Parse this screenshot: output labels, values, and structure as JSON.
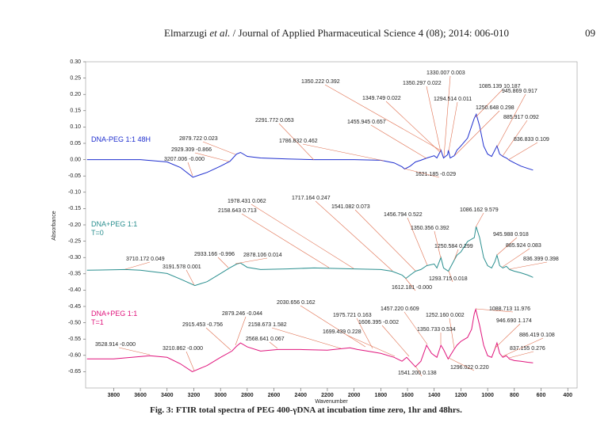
{
  "header": {
    "authors": "Elmarzugi",
    "etal": "et al.",
    "journal": "/ Journal of Applied Pharmaceutical Science 4 (08); 2014: 006-010",
    "page": "09"
  },
  "caption": "Fig. 3: FTIR total spectra of PEG 400-γDNA at incubation time zero, 1hr and 48hrs.",
  "chart_data": {
    "type": "line",
    "xlabel": "Wavenumber",
    "ylabel": "Absorbance",
    "xlim": [
      4010,
      330
    ],
    "ylim": [
      -0.7,
      0.3
    ],
    "xticks": [
      3800,
      3600,
      3400,
      3200,
      3000,
      2800,
      2600,
      2400,
      2200,
      2000,
      1800,
      1600,
      1400,
      1200,
      1000,
      800,
      600,
      400
    ],
    "yticks": [
      {
        "value": 0.3,
        "label": "0.30"
      },
      0.25,
      {
        "value": 0.2,
        "label": "0.20"
      },
      0.15,
      {
        "value": 0.1,
        "label": "0.10"
      },
      0.05,
      {
        "value": 0,
        "label": "0.00"
      },
      -0.05,
      {
        "value": -0.1,
        "label": "-0.10"
      },
      -0.15,
      {
        "value": -0.2,
        "label": "-0.20"
      },
      -0.25,
      {
        "value": -0.3,
        "label": "-0.30"
      },
      -0.35,
      {
        "value": -0.4,
        "label": "-0.40"
      },
      -0.45,
      {
        "value": -0.5,
        "label": "-0.50"
      },
      -0.55,
      {
        "value": -0.6,
        "label": "-0.60"
      },
      -0.65
    ],
    "series": [
      {
        "name": "DNA-PEG 1:1 48H",
        "color": "#1f2fcf",
        "x": [
          4000,
          3600,
          3400,
          3300,
          3207,
          3100,
          3000,
          2929,
          2880,
          2850,
          2800,
          2700,
          2500,
          2300,
          2000,
          1800,
          1700,
          1640,
          1621,
          1580,
          1540,
          1500,
          1455,
          1400,
          1380,
          1350,
          1330,
          1300,
          1294,
          1280,
          1250,
          1230,
          1200,
          1150,
          1100,
          1085,
          1060,
          1030,
          1000,
          970,
          946,
          930,
          910,
          886,
          860,
          837,
          800,
          750,
          700,
          660
        ],
        "values": [
          0,
          0,
          -0.007,
          -0.024,
          -0.054,
          -0.039,
          -0.02,
          -0.005,
          0.017,
          0.022,
          0.01,
          0.005,
          0.002,
          0,
          0,
          -0.002,
          -0.01,
          -0.022,
          -0.029,
          -0.02,
          -0.007,
          -0.002,
          0.005,
          0.012,
          0.005,
          0.029,
          0.005,
          0.015,
          0.029,
          0.005,
          0.012,
          0.029,
          0.042,
          0.066,
          0.127,
          0.139,
          0.103,
          0.042,
          0.017,
          0.01,
          0.029,
          0.042,
          0.017,
          0.01,
          0.005,
          -0.002,
          -0.01,
          -0.02,
          -0.027,
          -0.032
        ]
      },
      {
        "name": "DNA+PEG 1:1\nT=0",
        "color": "#2a8f8f",
        "x": [
          4000,
          3710,
          3600,
          3400,
          3300,
          3192,
          3100,
          3000,
          2933,
          2878,
          2850,
          2800,
          2700,
          2500,
          2300,
          2000,
          1800,
          1717,
          1640,
          1612,
          1580,
          1540,
          1500,
          1456,
          1400,
          1380,
          1350,
          1330,
          1294,
          1250,
          1230,
          1200,
          1150,
          1100,
          1086,
          1060,
          1030,
          1000,
          970,
          946,
          930,
          910,
          886,
          860,
          836,
          800,
          750,
          700,
          660
        ],
        "values": [
          -0.339,
          -0.337,
          -0.339,
          -0.349,
          -0.366,
          -0.386,
          -0.374,
          -0.349,
          -0.332,
          -0.32,
          -0.317,
          -0.33,
          -0.337,
          -0.335,
          -0.332,
          -0.335,
          -0.337,
          -0.342,
          -0.354,
          -0.364,
          -0.354,
          -0.342,
          -0.337,
          -0.325,
          -0.32,
          -0.332,
          -0.3,
          -0.332,
          -0.342,
          -0.308,
          -0.293,
          -0.283,
          -0.251,
          -0.239,
          -0.205,
          -0.239,
          -0.3,
          -0.325,
          -0.332,
          -0.313,
          -0.293,
          -0.325,
          -0.332,
          -0.327,
          -0.337,
          -0.342,
          -0.347,
          -0.354,
          -0.361
        ]
      },
      {
        "name": "DNA+PEG 1:1\nT=1",
        "color": "#e0147c",
        "x": [
          4000,
          3800,
          3529,
          3400,
          3300,
          3211,
          3100,
          3000,
          2915,
          2880,
          2850,
          2800,
          2700,
          2569,
          2400,
          2200,
          2031,
          1975,
          1900,
          1800,
          1700,
          1641,
          1606,
          1541,
          1500,
          1457,
          1420,
          1380,
          1350,
          1330,
          1296,
          1252,
          1230,
          1200,
          1150,
          1120,
          1100,
          1089,
          1060,
          1030,
          1000,
          970,
          947,
          930,
          910,
          886,
          860,
          837,
          800,
          750,
          700,
          660
        ],
        "values": [
          -0.611,
          -0.611,
          -0.601,
          -0.606,
          -0.626,
          -0.65,
          -0.631,
          -0.606,
          -0.587,
          -0.572,
          -0.562,
          -0.574,
          -0.587,
          -0.582,
          -0.582,
          -0.584,
          -0.577,
          -0.582,
          -0.587,
          -0.594,
          -0.606,
          -0.618,
          -0.606,
          -0.635,
          -0.618,
          -0.569,
          -0.594,
          -0.606,
          -0.569,
          -0.582,
          -0.611,
          -0.582,
          -0.569,
          -0.557,
          -0.545,
          -0.52,
          -0.472,
          -0.459,
          -0.508,
          -0.569,
          -0.601,
          -0.606,
          -0.582,
          -0.562,
          -0.594,
          -0.606,
          -0.601,
          -0.611,
          -0.616,
          -0.618,
          -0.621,
          -0.623
        ]
      }
    ],
    "annotations": [
      "1330.007 0.003",
      "1350.222 0.392",
      "1350.297 0.022",
      "1085.139 10.187",
      "945.869 0.917",
      "1349.749 0.022",
      "1294.514 0.011",
      "1250.648 0.298",
      "885.917 0.092",
      "2291.772 0.053",
      "1455.945 0.657",
      "2879.722 0.023",
      "1786.832 0.462",
      "836.833 0.109",
      "2929.309 -0.866",
      "3207.006 -0.000",
      "1621.185 -0.029",
      "1978.431 0.062",
      "1717.164 0.247",
      "2158.643 0.713",
      "1541.082 0.073",
      "1456.794 0.522",
      "1086.162 9.579",
      "1350.356 0.392",
      "945.988 0.918",
      "2933.166 -0.996",
      "2878.106 0.014",
      "1250.584 0.299",
      "885.924 0.083",
      "3710.172 0.049",
      "836.399 0.398",
      "3191.578 0.001",
      "1293.715 0.018",
      "1612.181 -0.000",
      "2030.656 0.162",
      "1457.220 0.609",
      "1088.713 11.976",
      "2879.246 -0.044",
      "1975.721 0.163",
      "1252.160 0.002",
      "2915.453 -0.756",
      "2158.673 1.582",
      "1606.395 -0.002",
      "946.690 1.174",
      "1350.733 0.534",
      "1699.439 0.228",
      "886.419 0.108",
      "2568.641 0.067",
      "3528.914 -0.000",
      "3210.862 -0.000",
      "837.155 0.276",
      "1296.022 0.220",
      "1541.200 0.138"
    ]
  }
}
